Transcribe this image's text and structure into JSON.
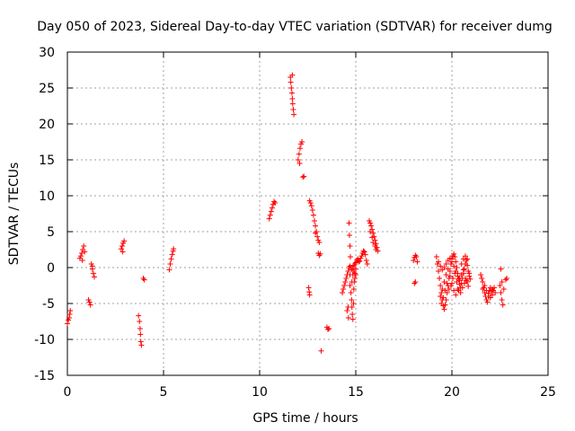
{
  "chart_data": {
    "type": "scatter",
    "title": "Day 050 of 2023, Sidereal Day-to-day VTEC variation (SDTVAR) for receiver dumg",
    "xlabel": "GPS time / hours",
    "ylabel": "SDTVAR / TECUs",
    "xlim": [
      0,
      25
    ],
    "ylim": [
      -15,
      30
    ],
    "xticks": [
      0,
      5,
      10,
      15,
      20,
      25
    ],
    "yticks": [
      -15,
      -10,
      -5,
      0,
      5,
      10,
      15,
      20,
      25,
      30
    ],
    "grid": true,
    "marker": "+",
    "marker_color": "#ff0000",
    "series": [
      {
        "name": "SDTVAR",
        "points": [
          [
            0.0,
            -7.8
          ],
          [
            0.05,
            -7.3
          ],
          [
            0.1,
            -7.0
          ],
          [
            0.12,
            -6.5
          ],
          [
            0.15,
            -6.0
          ],
          [
            0.65,
            1.3
          ],
          [
            0.7,
            1.6
          ],
          [
            0.75,
            2.0
          ],
          [
            0.8,
            2.5
          ],
          [
            0.85,
            3.0
          ],
          [
            0.9,
            2.2
          ],
          [
            0.78,
            1.0
          ],
          [
            1.1,
            -4.5
          ],
          [
            1.15,
            -4.8
          ],
          [
            1.2,
            -5.2
          ],
          [
            1.25,
            0.5
          ],
          [
            1.3,
            -0.2
          ],
          [
            1.35,
            -0.8
          ],
          [
            1.4,
            -1.3
          ],
          [
            1.3,
            0.2
          ],
          [
            2.8,
            2.6
          ],
          [
            2.85,
            3.0
          ],
          [
            2.9,
            3.4
          ],
          [
            2.95,
            3.7
          ],
          [
            2.88,
            2.2
          ],
          [
            3.7,
            -6.7
          ],
          [
            3.75,
            -7.5
          ],
          [
            3.78,
            -8.5
          ],
          [
            3.8,
            -9.3
          ],
          [
            3.82,
            -10.3
          ],
          [
            3.85,
            -10.8
          ],
          [
            3.95,
            -1.5
          ],
          [
            4.0,
            -1.7
          ],
          [
            5.3,
            -0.3
          ],
          [
            5.35,
            0.5
          ],
          [
            5.4,
            1.2
          ],
          [
            5.45,
            1.8
          ],
          [
            5.5,
            2.3
          ],
          [
            5.52,
            2.6
          ],
          [
            10.5,
            6.8
          ],
          [
            10.55,
            7.3
          ],
          [
            10.6,
            7.8
          ],
          [
            10.65,
            8.3
          ],
          [
            10.7,
            8.8
          ],
          [
            10.75,
            9.2
          ],
          [
            10.8,
            9.0
          ],
          [
            11.6,
            26.5
          ],
          [
            11.62,
            25.8
          ],
          [
            11.65,
            25.0
          ],
          [
            11.68,
            24.3
          ],
          [
            11.7,
            23.5
          ],
          [
            11.72,
            22.8
          ],
          [
            11.75,
            22.0
          ],
          [
            11.78,
            21.3
          ],
          [
            11.7,
            26.8
          ],
          [
            12.0,
            15.0
          ],
          [
            12.05,
            15.8
          ],
          [
            12.1,
            16.6
          ],
          [
            12.15,
            17.2
          ],
          [
            12.2,
            17.5
          ],
          [
            12.08,
            14.5
          ],
          [
            12.25,
            12.6
          ],
          [
            12.3,
            12.7
          ],
          [
            12.6,
            9.3
          ],
          [
            12.65,
            9.0
          ],
          [
            12.7,
            8.6
          ],
          [
            12.75,
            8.0
          ],
          [
            12.8,
            7.3
          ],
          [
            12.85,
            6.5
          ],
          [
            12.9,
            5.8
          ],
          [
            12.95,
            5.0
          ],
          [
            13.0,
            4.3
          ],
          [
            13.05,
            3.8
          ],
          [
            13.1,
            3.5
          ],
          [
            12.9,
            4.8
          ],
          [
            12.55,
            -2.8
          ],
          [
            12.58,
            -3.4
          ],
          [
            12.6,
            -3.8
          ],
          [
            13.05,
            2.0
          ],
          [
            13.1,
            1.7
          ],
          [
            13.15,
            1.9
          ],
          [
            13.2,
            -11.6
          ],
          [
            13.5,
            -8.3
          ],
          [
            13.55,
            -8.6
          ],
          [
            13.6,
            -8.5
          ],
          [
            14.3,
            -3.5
          ],
          [
            14.35,
            -3.0
          ],
          [
            14.4,
            -2.5
          ],
          [
            14.45,
            -2.0
          ],
          [
            14.5,
            -1.5
          ],
          [
            14.55,
            -1.0
          ],
          [
            14.6,
            -0.5
          ],
          [
            14.65,
            0.0
          ],
          [
            14.7,
            0.2
          ],
          [
            14.75,
            0.0
          ],
          [
            14.8,
            -0.3
          ],
          [
            14.85,
            0.0
          ],
          [
            14.9,
            0.3
          ],
          [
            14.95,
            0.5
          ],
          [
            15.0,
            0.7
          ],
          [
            15.05,
            1.0
          ],
          [
            15.1,
            1.2
          ],
          [
            15.15,
            0.8
          ],
          [
            15.2,
            0.9
          ],
          [
            15.25,
            1.3
          ],
          [
            15.3,
            1.6
          ],
          [
            15.35,
            2.0
          ],
          [
            15.4,
            2.3
          ],
          [
            15.45,
            2.2
          ],
          [
            15.5,
            1.8
          ],
          [
            15.55,
            1.0
          ],
          [
            15.6,
            0.5
          ],
          [
            14.55,
            -6.0
          ],
          [
            14.6,
            -5.5
          ],
          [
            14.62,
            -7.0
          ],
          [
            14.7,
            -2.5
          ],
          [
            14.75,
            -3.5
          ],
          [
            14.78,
            -4.5
          ],
          [
            14.8,
            -5.5
          ],
          [
            14.82,
            -6.5
          ],
          [
            14.85,
            -7.2
          ],
          [
            14.88,
            -5.0
          ],
          [
            14.9,
            -3.0
          ],
          [
            14.92,
            -2.0
          ],
          [
            14.95,
            -1.5
          ],
          [
            15.0,
            -1.0
          ],
          [
            14.7,
            -1.0
          ],
          [
            14.8,
            -2.0
          ],
          [
            14.85,
            -1.0
          ],
          [
            14.9,
            -0.5
          ],
          [
            14.95,
            -0.8
          ],
          [
            15.0,
            -0.2
          ],
          [
            14.65,
            6.2
          ],
          [
            14.67,
            4.5
          ],
          [
            14.7,
            3.0
          ],
          [
            14.72,
            1.5
          ],
          [
            15.7,
            6.5
          ],
          [
            15.75,
            6.2
          ],
          [
            15.8,
            5.8
          ],
          [
            15.85,
            5.3
          ],
          [
            15.9,
            4.8
          ],
          [
            15.95,
            4.3
          ],
          [
            16.0,
            3.8
          ],
          [
            16.05,
            3.3
          ],
          [
            16.1,
            2.8
          ],
          [
            16.15,
            2.3
          ],
          [
            15.75,
            5.0
          ],
          [
            15.85,
            4.2
          ],
          [
            15.9,
            3.5
          ],
          [
            16.0,
            3.0
          ],
          [
            16.05,
            2.5
          ],
          [
            18.0,
            1.0
          ],
          [
            18.05,
            1.4
          ],
          [
            18.1,
            1.7
          ],
          [
            18.15,
            1.5
          ],
          [
            18.2,
            0.8
          ],
          [
            18.05,
            -2.2
          ],
          [
            18.1,
            -2.0
          ],
          [
            19.2,
            1.5
          ],
          [
            19.25,
            0.5
          ],
          [
            19.3,
            -0.5
          ],
          [
            19.35,
            -1.5
          ],
          [
            19.4,
            -2.5
          ],
          [
            19.45,
            -3.5
          ],
          [
            19.5,
            -4.5
          ],
          [
            19.55,
            -5.3
          ],
          [
            19.6,
            -5.8
          ],
          [
            19.65,
            -5.2
          ],
          [
            19.7,
            -4.5
          ],
          [
            19.75,
            -3.5
          ],
          [
            19.8,
            -2.5
          ],
          [
            19.85,
            -1.5
          ],
          [
            19.9,
            -0.5
          ],
          [
            19.95,
            0.5
          ],
          [
            20.0,
            1.2
          ],
          [
            20.05,
            1.6
          ],
          [
            20.1,
            1.9
          ],
          [
            20.15,
            1.5
          ],
          [
            20.2,
            0.8
          ],
          [
            20.25,
            0.0
          ],
          [
            20.3,
            -0.8
          ],
          [
            20.35,
            -1.6
          ],
          [
            20.4,
            -2.3
          ],
          [
            20.45,
            -2.8
          ],
          [
            20.5,
            -2.2
          ],
          [
            20.55,
            -1.5
          ],
          [
            20.6,
            -0.8
          ],
          [
            20.65,
            -0.2
          ],
          [
            20.7,
            0.5
          ],
          [
            20.75,
            1.0
          ],
          [
            20.8,
            0.3
          ],
          [
            20.85,
            -0.5
          ],
          [
            20.9,
            -1.2
          ],
          [
            19.3,
            0.8
          ],
          [
            19.4,
            0.2
          ],
          [
            19.5,
            -0.3
          ],
          [
            19.6,
            0.0
          ],
          [
            19.7,
            0.5
          ],
          [
            19.8,
            1.0
          ],
          [
            19.9,
            1.3
          ],
          [
            20.0,
            0.8
          ],
          [
            20.1,
            0.2
          ],
          [
            20.2,
            -0.5
          ],
          [
            20.3,
            -1.2
          ],
          [
            20.4,
            -1.8
          ],
          [
            20.5,
            -1.0
          ],
          [
            20.6,
            -0.3
          ],
          [
            20.7,
            -1.5
          ],
          [
            20.8,
            -2.0
          ],
          [
            20.9,
            -0.8
          ],
          [
            19.5,
            -3.0
          ],
          [
            19.6,
            -2.0
          ],
          [
            19.7,
            -1.0
          ],
          [
            19.8,
            -0.2
          ],
          [
            19.9,
            -1.2
          ],
          [
            20.0,
            -2.2
          ],
          [
            20.1,
            -3.2
          ],
          [
            20.2,
            -3.8
          ],
          [
            20.3,
            -3.0
          ],
          [
            20.4,
            -1.5
          ],
          [
            20.5,
            0.5
          ],
          [
            20.6,
            1.2
          ],
          [
            20.7,
            1.6
          ],
          [
            20.8,
            1.2
          ],
          [
            19.4,
            -4.0
          ],
          [
            19.45,
            -5.0
          ],
          [
            19.55,
            -4.2
          ],
          [
            19.65,
            -3.2
          ],
          [
            19.75,
            -2.2
          ],
          [
            19.85,
            -3.0
          ],
          [
            19.95,
            -2.5
          ],
          [
            20.05,
            -1.5
          ],
          [
            20.15,
            -0.8
          ],
          [
            20.25,
            -2.0
          ],
          [
            20.35,
            -3.2
          ],
          [
            20.45,
            -3.5
          ],
          [
            20.55,
            -2.8
          ],
          [
            20.65,
            -2.2
          ],
          [
            20.75,
            -1.8
          ],
          [
            20.85,
            -2.6
          ],
          [
            20.95,
            -1.6
          ],
          [
            21.5,
            -1.0
          ],
          [
            21.55,
            -1.5
          ],
          [
            21.6,
            -2.0
          ],
          [
            21.65,
            -2.8
          ],
          [
            21.7,
            -3.5
          ],
          [
            21.75,
            -4.0
          ],
          [
            21.8,
            -4.5
          ],
          [
            21.85,
            -4.8
          ],
          [
            21.9,
            -4.0
          ],
          [
            21.95,
            -3.2
          ],
          [
            22.0,
            -2.8
          ],
          [
            22.05,
            -3.3
          ],
          [
            22.1,
            -3.8
          ],
          [
            22.15,
            -3.2
          ],
          [
            22.2,
            -2.8
          ],
          [
            22.25,
            -3.5
          ],
          [
            21.6,
            -3.0
          ],
          [
            21.7,
            -2.5
          ],
          [
            21.8,
            -3.2
          ],
          [
            21.9,
            -3.6
          ],
          [
            22.0,
            -4.2
          ],
          [
            22.1,
            -3.0
          ],
          [
            22.5,
            -2.5
          ],
          [
            22.55,
            -3.5
          ],
          [
            22.6,
            -4.5
          ],
          [
            22.65,
            -5.2
          ],
          [
            22.6,
            -2.0
          ],
          [
            22.7,
            -3.0
          ],
          [
            22.55,
            -0.2
          ],
          [
            22.8,
            -1.7
          ],
          [
            22.85,
            -1.5
          ]
        ]
      }
    ]
  }
}
